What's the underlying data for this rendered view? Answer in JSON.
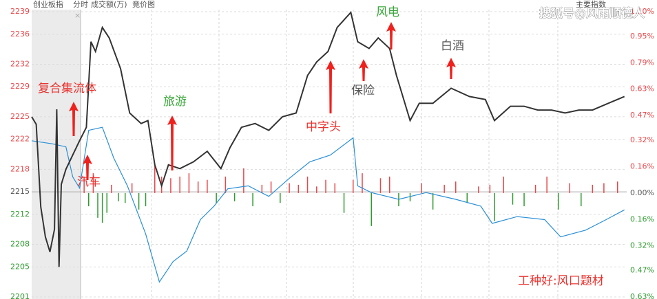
{
  "header": {
    "index_name": "创业板指",
    "tabs": [
      "分时",
      "成交额(万)",
      "竟价图"
    ],
    "right_label": "主要指数",
    "watermark": "搜狐号@风雨顺德人"
  },
  "chart_data": {
    "type": "line",
    "ylim": [
      2201,
      2239
    ],
    "yticks": [
      2239,
      2236,
      2232,
      2229,
      2225,
      2222,
      2218,
      2215,
      2212,
      2208,
      2205,
      2201
    ],
    "y2lim": [
      -0.63,
      1.1
    ],
    "y2ticks": [
      {
        "value": 1.1,
        "label": "1.10%"
      },
      {
        "value": 0.95,
        "label": "0.95%"
      },
      {
        "value": 0.79,
        "label": "0.79%"
      },
      {
        "value": 0.63,
        "label": "0.63%"
      },
      {
        "value": 0.47,
        "label": "0.47%"
      },
      {
        "value": 0.32,
        "label": "0.32%"
      },
      {
        "value": 0.16,
        "label": "0.16%"
      },
      {
        "value": 0,
        "label": "0.00%"
      },
      {
        "value": -0.16,
        "label": "0.16%"
      },
      {
        "value": -0.32,
        "label": "0.32%"
      },
      {
        "value": -0.47,
        "label": "0.47%"
      },
      {
        "value": -0.63,
        "label": "0.63%"
      }
    ],
    "xlim": [
      -21,
      240
    ],
    "grid": true,
    "up_color": "#e8474a",
    "down_color": "#2f9a2f",
    "series": [
      {
        "color": "#333333",
        "x": [
          -21,
          -19,
          -17,
          -15,
          -13,
          -11,
          -10,
          -9,
          -8,
          -6,
          0,
          3,
          5,
          7,
          10,
          13,
          18,
          22,
          27,
          30,
          33,
          36,
          39,
          44,
          50,
          56,
          62,
          66,
          71,
          77,
          83,
          89,
          95,
          100,
          104,
          109,
          113,
          119,
          122,
          127,
          131,
          136,
          139,
          145,
          149,
          155,
          163,
          171,
          178,
          182,
          189,
          195,
          201,
          207,
          213,
          219,
          225,
          232,
          239
        ],
        "values": [
          2225,
          2224,
          2213,
          2209,
          2207,
          2210,
          2226,
          2205,
          2216,
          2218,
          2221.8,
          2223.6,
          2235,
          2233.7,
          2236.9,
          2235.5,
          2231.4,
          2225.5,
          2224.1,
          2224.5,
          2218.6,
          2215.8,
          2218.6,
          2218.1,
          2219,
          2220.4,
          2218.1,
          2220.9,
          2223.6,
          2224.1,
          2223.2,
          2225,
          2225.5,
          2230.5,
          2232.3,
          2233.7,
          2236.9,
          2238.9,
          2235,
          2234.1,
          2235.5,
          2234.1,
          2230.5,
          2224.5,
          2226.8,
          2226.8,
          2228.8,
          2227.7,
          2227.3,
          2224.5,
          2226.4,
          2226.4,
          2225.9,
          2225.9,
          2225.5,
          2225.9,
          2225.9,
          2226.8,
          2227.7
        ]
      },
      {
        "color": "#2a8fd6",
        "x": [
          -21,
          -12,
          -6,
          -3,
          0,
          4,
          10,
          15,
          21,
          29,
          35,
          41,
          47,
          53,
          59,
          65,
          74,
          83,
          92,
          101,
          110,
          120,
          122,
          128,
          140,
          152,
          165,
          176,
          181,
          192,
          204,
          211,
          222,
          231,
          239
        ],
        "values": [
          2221.8,
          2221.4,
          2221,
          2217,
          2215.5,
          2223.2,
          2223.6,
          2219.5,
          2215.8,
          2209.4,
          2203,
          2205.7,
          2207.1,
          2211.3,
          2213.1,
          2215.4,
          2215.8,
          2214.4,
          2216.8,
          2219,
          2219.9,
          2222.2,
          2215.8,
          2214.9,
          2214,
          2214.9,
          2214,
          2213.1,
          2210.8,
          2211.7,
          2211.3,
          2209,
          2209.9,
          2211.3,
          2212.6
        ]
      }
    ],
    "bars": {
      "x": [
        2,
        4,
        6,
        8,
        10,
        12,
        14,
        17,
        20,
        23,
        26,
        29,
        33,
        36,
        40,
        44,
        48,
        52,
        56,
        60,
        64,
        68,
        72,
        76,
        80,
        84,
        88,
        92,
        96,
        100,
        104,
        108,
        112,
        116,
        120,
        124,
        128,
        132,
        136,
        140,
        145,
        150,
        155,
        160,
        165,
        170,
        175,
        180,
        182,
        186,
        190,
        195,
        200,
        205,
        210,
        215,
        220,
        225,
        230,
        236
      ],
      "values": [
        0.1,
        -0.08,
        0.12,
        -0.15,
        -0.18,
        -0.12,
        0.05,
        -0.05,
        -0.06,
        0.06,
        -0.1,
        -0.08,
        0.18,
        0.1,
        0.09,
        0.1,
        0.12,
        0.07,
        0.08,
        -0.06,
        0.1,
        -0.05,
        0.15,
        -0.08,
        0.05,
        0.07,
        -0.06,
        0.06,
        0.05,
        0.1,
        0.04,
        0.08,
        0.06,
        -0.12,
        0.08,
        0.12,
        -0.2,
        0.09,
        0.1,
        -0.08,
        -0.05,
        0.06,
        -0.1,
        0.05,
        0.07,
        -0.06,
        0.04,
        0.05,
        -0.17,
        0.1,
        -0.07,
        -0.08,
        0.05,
        0.1,
        -0.1,
        0.06,
        -0.08,
        0.05,
        0.06,
        0.07
      ]
    },
    "annotations": [
      {
        "text": "复合集流体",
        "color": "#e8332f"
      },
      {
        "text": "汽车",
        "color": "#e8332f"
      },
      {
        "text": "旅游",
        "color": "#3aa63a"
      },
      {
        "text": "中字头",
        "color": "#e8332f"
      },
      {
        "text": "保险",
        "color": "#555555"
      },
      {
        "text": "风电",
        "color": "#3aa63a"
      },
      {
        "text": "白酒",
        "color": "#555555"
      },
      {
        "text": "工种好:风口题材",
        "color": "#e8332f"
      }
    ]
  }
}
